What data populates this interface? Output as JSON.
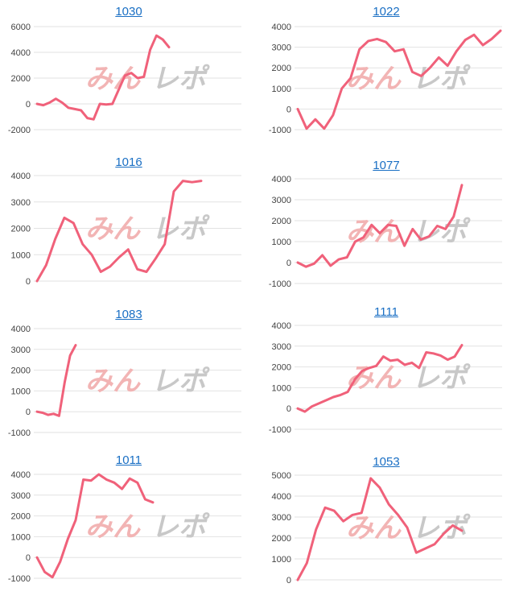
{
  "page": {
    "line_color": "#f0617a",
    "link_color": "#1a6fc4",
    "grid_color": "#e2e2e2"
  },
  "watermark": {
    "left_text": "みん",
    "right_text": "レポ",
    "left_color": "#f2b4b4",
    "right_color": "#c8c8c8"
  },
  "chart_data": [
    {
      "type": "line",
      "title": "1030",
      "ylim": [
        -2000,
        6000
      ],
      "yticks": [
        "6000",
        "4000",
        "2000",
        "0",
        "-2000"
      ],
      "series": [
        {
          "values": [
            0,
            -100,
            100,
            400,
            100,
            -300,
            -400,
            -500,
            -1100,
            -1200,
            0,
            -50,
            0,
            1100,
            2200,
            2400,
            2000,
            2100,
            4200,
            5300,
            5000,
            4400
          ]
        }
      ]
    },
    {
      "type": "line",
      "title": "1022",
      "ylim": [
        -1000,
        4000
      ],
      "yticks": [
        "4000",
        "3000",
        "2000",
        "1000",
        "0",
        "-1000"
      ],
      "series": [
        {
          "values": [
            0,
            -950,
            -500,
            -950,
            -300,
            1000,
            1500,
            2900,
            3300,
            3400,
            3250,
            2800,
            2900,
            1800,
            1600,
            2000,
            2500,
            2100,
            2800,
            3350,
            3600,
            3100,
            3400,
            3800
          ]
        }
      ]
    },
    {
      "type": "line",
      "title": "1016",
      "ylim": [
        0,
        4000
      ],
      "yticks": [
        "4000",
        "3000",
        "2000",
        "1000",
        "0"
      ],
      "series": [
        {
          "values": [
            0,
            600,
            1600,
            2400,
            2200,
            1400,
            1000,
            350,
            550,
            900,
            1200,
            450,
            350,
            850,
            1400,
            3400,
            3800,
            3750,
            3800
          ]
        }
      ]
    },
    {
      "type": "line",
      "title": "1077",
      "ylim": [
        -1000,
        4000
      ],
      "yticks": [
        "4000",
        "3000",
        "2000",
        "1000",
        "0",
        "-1000"
      ],
      "series": [
        {
          "values": [
            0,
            -200,
            -50,
            350,
            -150,
            150,
            250,
            1000,
            1200,
            1800,
            1400,
            1800,
            1750,
            800,
            1600,
            1100,
            1250,
            1750,
            1600,
            2200,
            3700
          ]
        }
      ]
    },
    {
      "type": "line",
      "title": "1083",
      "ylim": [
        -1000,
        4000
      ],
      "yticks": [
        "4000",
        "3000",
        "2000",
        "1000",
        "0",
        "-1000"
      ],
      "series": [
        {
          "values": [
            0,
            -50,
            -150,
            -100,
            -200,
            1400,
            2700,
            3200
          ]
        }
      ]
    },
    {
      "type": "line",
      "title": "1111",
      "ylim": [
        -1000,
        4000
      ],
      "yticks": [
        "4000",
        "3000",
        "2000",
        "1000",
        "0",
        "-1000"
      ],
      "series": [
        {
          "values": [
            0,
            -150,
            100,
            250,
            400,
            550,
            650,
            800,
            1400,
            1800,
            1950,
            2050,
            2500,
            2300,
            2350,
            2100,
            2200,
            1950,
            2700,
            2650,
            2550,
            2350,
            2500,
            3050
          ]
        }
      ]
    },
    {
      "type": "line",
      "title": "1011",
      "ylim": [
        -1000,
        4000
      ],
      "yticks": [
        "4000",
        "3000",
        "2000",
        "1000",
        "0",
        "-1000"
      ],
      "series": [
        {
          "values": [
            0,
            -700,
            -950,
            -200,
            900,
            1800,
            3750,
            3700,
            4000,
            3750,
            3600,
            3300,
            3800,
            3600,
            2800,
            2650
          ]
        }
      ]
    },
    {
      "type": "line",
      "title": "1053",
      "ylim": [
        0,
        5000
      ],
      "yticks": [
        "5000",
        "4000",
        "3000",
        "2000",
        "1000",
        "0"
      ],
      "series": [
        {
          "values": [
            0,
            800,
            2400,
            3450,
            3300,
            2800,
            3100,
            3200,
            4850,
            4400,
            3600,
            3100,
            2500,
            1300,
            1500,
            1700,
            2200,
            2600,
            2350
          ]
        }
      ]
    }
  ]
}
